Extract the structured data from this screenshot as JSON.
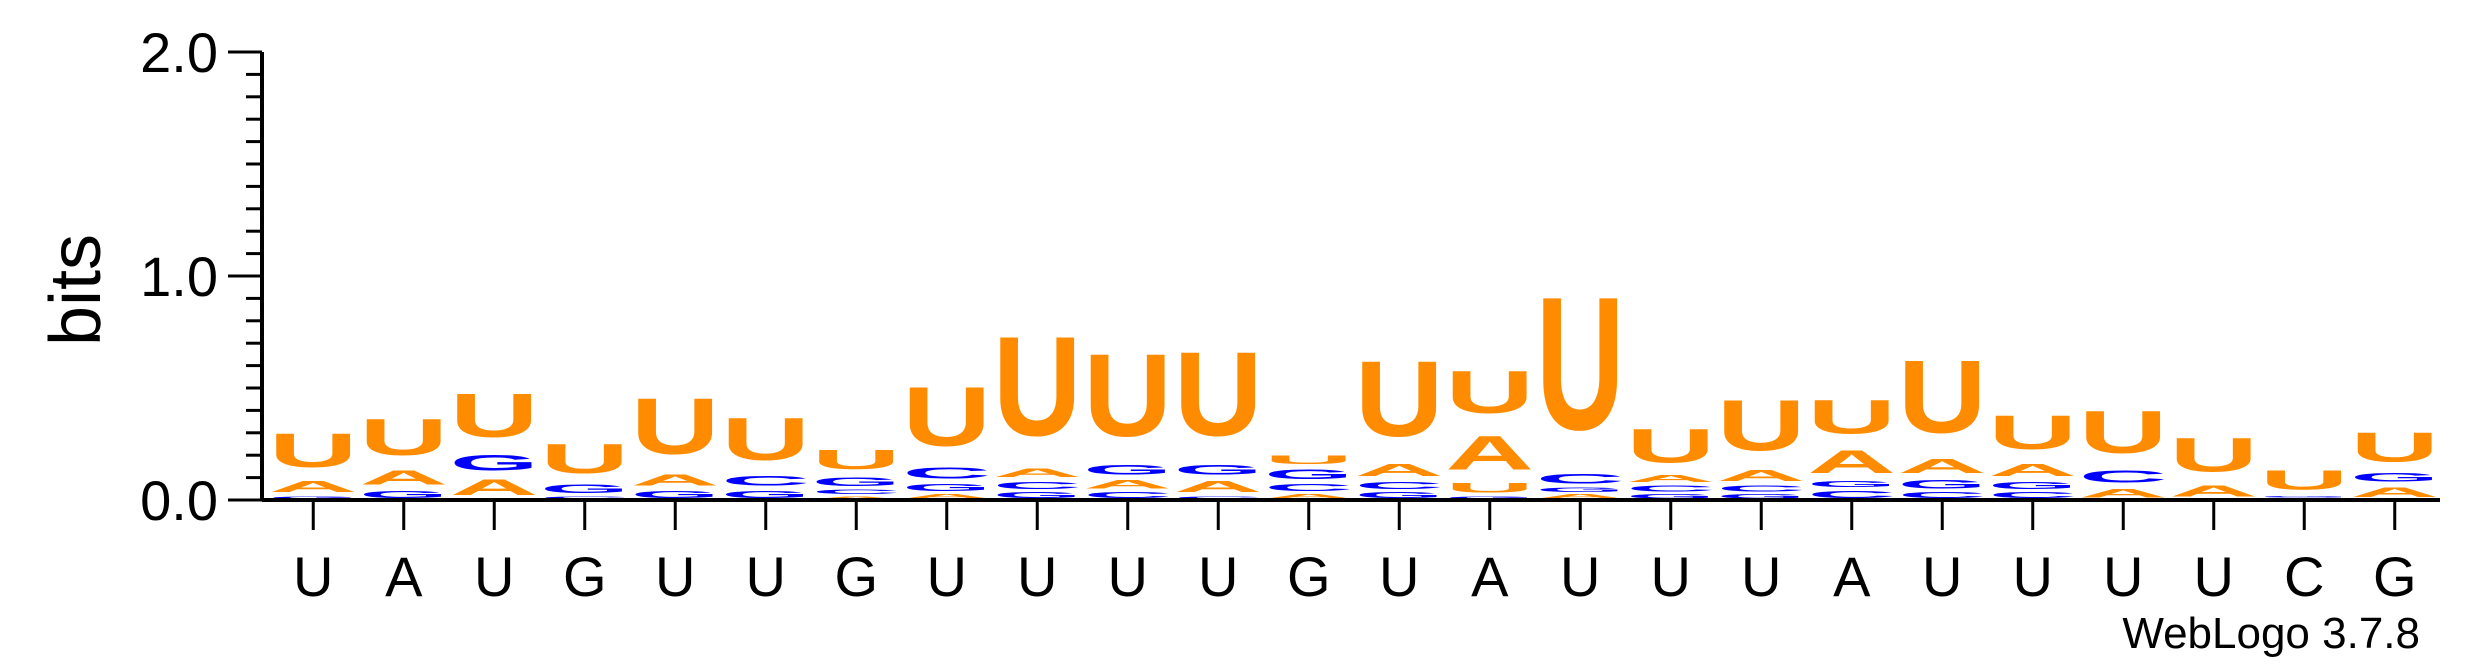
{
  "chart_data": {
    "type": "sequence-logo",
    "ylabel": "bits",
    "ylim": [
      0,
      2.0
    ],
    "yticks": [
      "0.0",
      "1.0",
      "2.0"
    ],
    "credit": "WebLogo 3.7.8",
    "colors": {
      "U": "#ff8c00",
      "A": "#ff8c00",
      "G": "#0000ff",
      "C": "#0000ff"
    },
    "positions": [
      {
        "label": "U",
        "stack": [
          {
            "letter": "G",
            "bits": 0.02
          },
          {
            "letter": "A",
            "bits": 0.08
          },
          {
            "letter": "U",
            "bits": 0.24
          }
        ]
      },
      {
        "label": "A",
        "stack": [
          {
            "letter": "G",
            "bits": 0.05
          },
          {
            "letter": "A",
            "bits": 0.1
          },
          {
            "letter": "U",
            "bits": 0.26
          }
        ]
      },
      {
        "label": "U",
        "stack": [
          {
            "letter": "A",
            "bits": 0.11
          },
          {
            "letter": "G",
            "bits": 0.11
          },
          {
            "letter": "U",
            "bits": 0.31
          }
        ]
      },
      {
        "label": "G",
        "stack": [
          {
            "letter": "C",
            "bits": 0.02
          },
          {
            "letter": "G",
            "bits": 0.06
          },
          {
            "letter": "U",
            "bits": 0.21
          }
        ]
      },
      {
        "label": "U",
        "stack": [
          {
            "letter": "G",
            "bits": 0.05
          },
          {
            "letter": "A",
            "bits": 0.08
          },
          {
            "letter": "U",
            "bits": 0.4
          }
        ]
      },
      {
        "label": "U",
        "stack": [
          {
            "letter": "G",
            "bits": 0.05
          },
          {
            "letter": "C",
            "bits": 0.07
          },
          {
            "letter": "U",
            "bits": 0.3
          }
        ]
      },
      {
        "label": "G",
        "stack": [
          {
            "letter": "A",
            "bits": 0.02
          },
          {
            "letter": "C",
            "bits": 0.03
          },
          {
            "letter": "G",
            "bits": 0.06
          },
          {
            "letter": "U",
            "bits": 0.14
          }
        ]
      },
      {
        "label": "U",
        "stack": [
          {
            "letter": "A",
            "bits": 0.03
          },
          {
            "letter": "G",
            "bits": 0.05
          },
          {
            "letter": "C",
            "bits": 0.08
          },
          {
            "letter": "U",
            "bits": 0.42
          }
        ]
      },
      {
        "label": "U",
        "stack": [
          {
            "letter": "G",
            "bits": 0.04
          },
          {
            "letter": "C",
            "bits": 0.05
          },
          {
            "letter": "A",
            "bits": 0.06
          },
          {
            "letter": "U",
            "bits": 0.71
          }
        ]
      },
      {
        "label": "U",
        "stack": [
          {
            "letter": "C",
            "bits": 0.04
          },
          {
            "letter": "A",
            "bits": 0.06
          },
          {
            "letter": "G",
            "bits": 0.07
          },
          {
            "letter": "U",
            "bits": 0.59
          }
        ]
      },
      {
        "label": "U",
        "stack": [
          {
            "letter": "C",
            "bits": 0.02
          },
          {
            "letter": "A",
            "bits": 0.08
          },
          {
            "letter": "G",
            "bits": 0.07
          },
          {
            "letter": "U",
            "bits": 0.6
          }
        ]
      },
      {
        "label": "G",
        "stack": [
          {
            "letter": "A",
            "bits": 0.03
          },
          {
            "letter": "C",
            "bits": 0.05
          },
          {
            "letter": "G",
            "bits": 0.07
          },
          {
            "letter": "U",
            "bits": 0.06
          }
        ]
      },
      {
        "label": "U",
        "stack": [
          {
            "letter": "G",
            "bits": 0.04
          },
          {
            "letter": "C",
            "bits": 0.05
          },
          {
            "letter": "A",
            "bits": 0.09
          },
          {
            "letter": "U",
            "bits": 0.54
          }
        ]
      },
      {
        "label": "A",
        "stack": [
          {
            "letter": "G",
            "bits": 0.02
          },
          {
            "letter": "U",
            "bits": 0.07
          },
          {
            "letter": "A",
            "bits": 0.24
          },
          {
            "letter": "U",
            "bits": 0.3
          }
        ]
      },
      {
        "label": "U",
        "stack": [
          {
            "letter": "A",
            "bits": 0.03
          },
          {
            "letter": "G",
            "bits": 0.03
          },
          {
            "letter": "C",
            "bits": 0.07
          },
          {
            "letter": "U",
            "bits": 0.95
          }
        ]
      },
      {
        "label": "U",
        "stack": [
          {
            "letter": "G",
            "bits": 0.03
          },
          {
            "letter": "C",
            "bits": 0.04
          },
          {
            "letter": "A",
            "bits": 0.05
          },
          {
            "letter": "U",
            "bits": 0.24
          }
        ]
      },
      {
        "label": "U",
        "stack": [
          {
            "letter": "G",
            "bits": 0.03
          },
          {
            "letter": "C",
            "bits": 0.04
          },
          {
            "letter": "A",
            "bits": 0.08
          },
          {
            "letter": "U",
            "bits": 0.36
          }
        ]
      },
      {
        "label": "A",
        "stack": [
          {
            "letter": "C",
            "bits": 0.05
          },
          {
            "letter": "G",
            "bits": 0.04
          },
          {
            "letter": "A",
            "bits": 0.16
          },
          {
            "letter": "U",
            "bits": 0.24
          }
        ]
      },
      {
        "label": "U",
        "stack": [
          {
            "letter": "C",
            "bits": 0.04
          },
          {
            "letter": "G",
            "bits": 0.06
          },
          {
            "letter": "A",
            "bits": 0.1
          },
          {
            "letter": "U",
            "bits": 0.52
          }
        ]
      },
      {
        "label": "U",
        "stack": [
          {
            "letter": "C",
            "bits": 0.04
          },
          {
            "letter": "G",
            "bits": 0.05
          },
          {
            "letter": "A",
            "bits": 0.09
          },
          {
            "letter": "U",
            "bits": 0.24
          }
        ]
      },
      {
        "label": "U",
        "stack": [
          {
            "letter": "A",
            "bits": 0.06
          },
          {
            "letter": "C",
            "bits": 0.09
          },
          {
            "letter": "U",
            "bits": 0.3
          }
        ]
      },
      {
        "label": "U",
        "stack": [
          {
            "letter": "A",
            "bits": 0.08
          },
          {
            "letter": "U",
            "bits": 0.24
          }
        ]
      },
      {
        "label": "C",
        "stack": [
          {
            "letter": "A",
            "bits": 0.01
          },
          {
            "letter": "G",
            "bits": 0.01
          },
          {
            "letter": "U",
            "bits": 0.14
          }
        ]
      },
      {
        "label": "G",
        "stack": [
          {
            "letter": "A",
            "bits": 0.07
          },
          {
            "letter": "G",
            "bits": 0.06
          },
          {
            "letter": "U",
            "bits": 0.21
          }
        ]
      }
    ]
  }
}
